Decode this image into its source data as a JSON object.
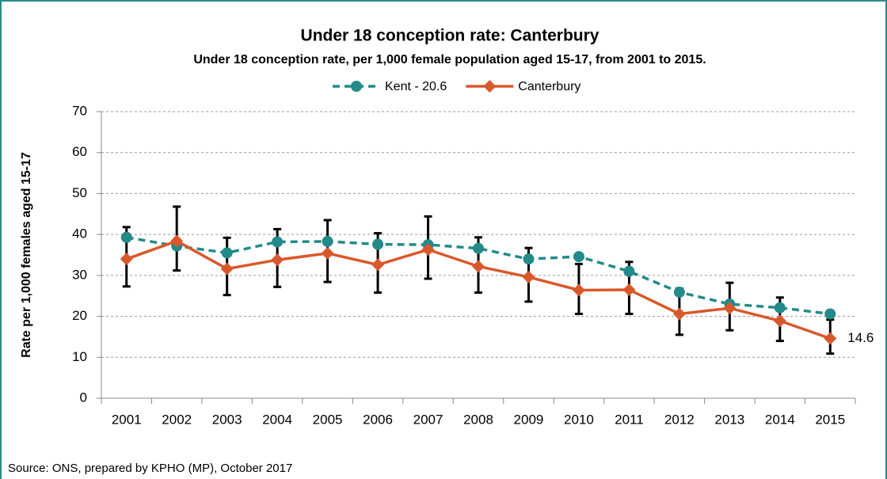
{
  "chart_data": {
    "type": "line",
    "title": "Under 18 conception rate: Canterbury",
    "subtitle": "Under 18 conception rate, per 1,000 female population aged 15-17, from 2001 to 2015.",
    "y_label": "Rate per 1,000 females aged 15-17",
    "source": "Source: ONS, prepared by KPHO (MP), October 2017",
    "categories": [
      "2001",
      "2002",
      "2003",
      "2004",
      "2005",
      "2006",
      "2007",
      "2008",
      "2009",
      "2010",
      "2011",
      "2012",
      "2013",
      "2014",
      "2015"
    ],
    "series": [
      {
        "name": "Kent - 20.6",
        "color": "#238a8a",
        "dashed": true,
        "marker": "circle",
        "values": [
          39.3,
          37.2,
          35.5,
          38.2,
          38.3,
          37.6,
          37.5,
          36.6,
          34.0,
          34.6,
          31.0,
          25.9,
          23.0,
          22.1,
          20.6
        ]
      },
      {
        "name": "Canterbury",
        "color": "#d9582b",
        "dashed": false,
        "marker": "diamond",
        "values": [
          34.0,
          38.4,
          31.6,
          33.8,
          35.4,
          32.6,
          36.3,
          32.2,
          29.6,
          26.4,
          26.5,
          20.6,
          22.0,
          18.9,
          14.6
        ],
        "lower": [
          27.3,
          31.2,
          25.2,
          27.2,
          28.4,
          25.8,
          29.2,
          25.8,
          23.6,
          20.6,
          20.6,
          15.5,
          16.6,
          14.0,
          10.9
        ],
        "upper": [
          41.8,
          46.8,
          39.2,
          41.3,
          43.5,
          40.3,
          44.4,
          39.3,
          36.7,
          32.8,
          33.3,
          26.8,
          28.2,
          24.6,
          19.2
        ]
      }
    ],
    "ylim": [
      0,
      70
    ],
    "yticks": [
      0,
      10,
      20,
      30,
      40,
      50,
      60,
      70
    ],
    "grid": true,
    "legend": "top"
  }
}
